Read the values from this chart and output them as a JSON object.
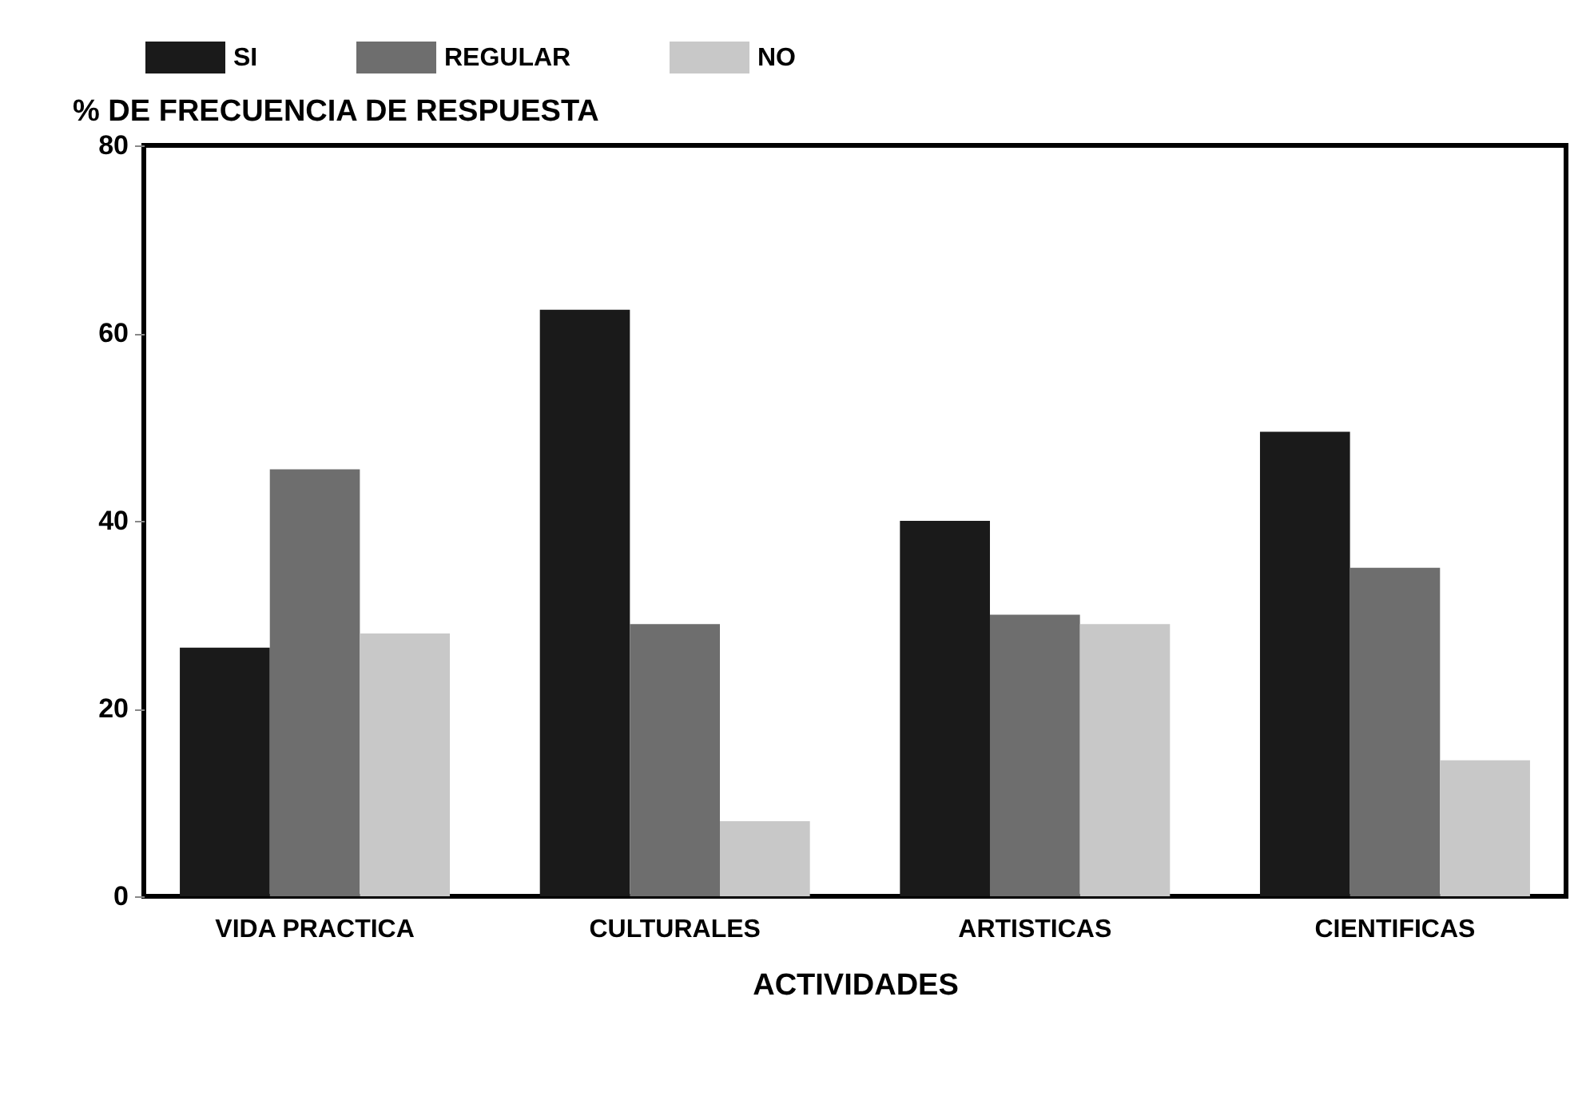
{
  "chart_data": {
    "type": "bar",
    "xlabel": "ACTIVIDADES",
    "ylabel": "% DE FRECUENCIA DE RESPUESTA",
    "categories": [
      "VIDA PRACTICA",
      "CULTURALES",
      "ARTISTICAS",
      "CIENTIFICAS"
    ],
    "series": [
      {
        "name": "SI",
        "color": "#1a1a1a",
        "values": [
          26.5,
          62.5,
          40,
          49.5
        ]
      },
      {
        "name": "REGULAR",
        "color": "#6e6e6e",
        "values": [
          45.5,
          29,
          30,
          35
        ]
      },
      {
        "name": "NO",
        "color": "#c8c8c8",
        "values": [
          28,
          8,
          29,
          14.5
        ]
      }
    ],
    "ylim": [
      0,
      80
    ],
    "yticks": [
      0,
      20,
      40,
      60,
      80
    ],
    "grid": false,
    "legend": "top"
  }
}
